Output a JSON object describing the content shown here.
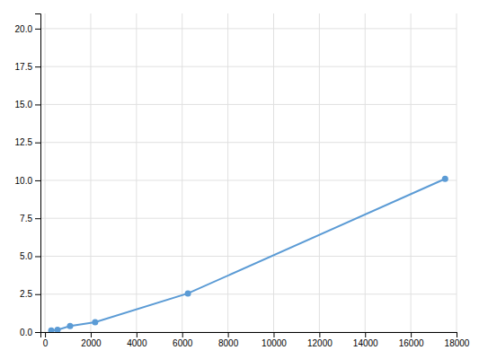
{
  "chart_data": {
    "type": "line",
    "x": [
      274,
      548,
      1096,
      2192,
      6250,
      17500
    ],
    "y": [
      0.1,
      0.15,
      0.4,
      0.65,
      2.55,
      10.1
    ],
    "color": "#5b9bd5",
    "marker": "circle",
    "xlim": [
      -200,
      18000
    ],
    "ylim": [
      0.0,
      21.0
    ],
    "xticks": [
      0,
      2000,
      4000,
      6000,
      8000,
      10000,
      12000,
      14000,
      16000,
      18000
    ],
    "yticks": [
      {
        "value": 0.0,
        "label": "0.0"
      },
      2.5,
      {
        "value": 5.0,
        "label": "5.0"
      },
      7.5,
      {
        "value": 10.0,
        "label": "10.0"
      },
      12.5,
      {
        "value": 15.0,
        "label": "15.0"
      },
      17.5,
      {
        "value": 20.0,
        "label": "20.0"
      }
    ],
    "grid": true
  }
}
